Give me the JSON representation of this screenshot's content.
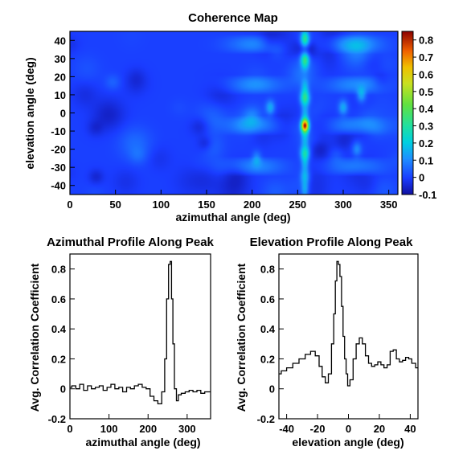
{
  "chart_data": [
    {
      "type": "heatmap",
      "title": "Coherence Map",
      "xlabel": "azimuthal angle (deg)",
      "ylabel": "elevation angle (deg)",
      "xlim": [
        0,
        360
      ],
      "ylim": [
        -45,
        45
      ],
      "xticks": [
        0,
        50,
        100,
        150,
        200,
        250,
        300,
        350
      ],
      "yticks": [
        40,
        30,
        20,
        10,
        0,
        -10,
        -20,
        -30,
        -40
      ],
      "zlim": [
        -0.1,
        0.85
      ],
      "colorbar_ticks": [
        0.8,
        0.7,
        0.6,
        0.5,
        0.4,
        0.3,
        0.2,
        0.1,
        0,
        -0.1
      ],
      "peak": {
        "azimuth": 258,
        "elevation": -7,
        "value": 0.85
      },
      "background_value": 0.0,
      "features": [
        {
          "azimuth": 258,
          "elevation": 8,
          "value": 0.35
        },
        {
          "azimuth": 258,
          "elevation": -22,
          "value": 0.3
        },
        {
          "azimuth": 258,
          "elevation": 30,
          "value": 0.25
        },
        {
          "azimuth": 258,
          "elevation": 40,
          "value": 0.25
        },
        {
          "azimuth": 258,
          "elevation": -35,
          "value": 0.2
        },
        {
          "azimuth": 220,
          "elevation": 3,
          "value": 0.2
        },
        {
          "azimuth": 300,
          "elevation": 3,
          "value": 0.2
        },
        {
          "azimuth": 320,
          "elevation": 10,
          "value": 0.2
        },
        {
          "azimuth": 315,
          "elevation": -20,
          "value": 0.15
        },
        {
          "azimuth": 205,
          "elevation": -25,
          "value": 0.15
        }
      ]
    },
    {
      "type": "line",
      "title": "Azimuthal Profile Along Peak",
      "xlabel": "azimuthal angle (deg)",
      "ylabel": "Avg. Correlation Coefficient",
      "xlim": [
        0,
        360
      ],
      "ylim": [
        -0.2,
        0.9
      ],
      "xticks": [
        0,
        100,
        200,
        300
      ],
      "yticks": [
        0.8,
        0.6,
        0.4,
        0.2,
        0,
        -0.2
      ],
      "x": [
        0,
        10,
        20,
        30,
        40,
        50,
        60,
        70,
        80,
        90,
        100,
        110,
        120,
        130,
        140,
        150,
        160,
        170,
        180,
        190,
        200,
        210,
        220,
        230,
        240,
        245,
        250,
        255,
        258,
        262,
        265,
        270,
        275,
        280,
        290,
        300,
        310,
        320,
        330,
        340,
        350,
        360
      ],
      "y": [
        0.01,
        0.02,
        0.0,
        0.03,
        -0.01,
        0.02,
        0.0,
        0.01,
        0.02,
        -0.01,
        0.01,
        0.03,
        0.0,
        0.01,
        -0.02,
        0.01,
        0.0,
        0.02,
        0.03,
        0.01,
        0.0,
        -0.05,
        -0.08,
        -0.1,
        -0.02,
        0.2,
        0.6,
        0.83,
        0.85,
        0.6,
        0.3,
        0.0,
        -0.08,
        -0.04,
        -0.03,
        -0.02,
        -0.01,
        -0.02,
        -0.01,
        -0.03,
        -0.02,
        -0.02
      ]
    },
    {
      "type": "line",
      "title": "Elevation Profile Along Peak",
      "xlabel": "elevation angle (deg)",
      "ylabel": "Avg. Correlation Coefficient",
      "xlim": [
        -45,
        45
      ],
      "ylim": [
        -0.2,
        0.9
      ],
      "xticks": [
        -40,
        -20,
        0,
        20,
        40
      ],
      "yticks": [
        0.8,
        0.6,
        0.4,
        0.2,
        0,
        -0.2
      ],
      "x": [
        -45,
        -42,
        -38,
        -34,
        -30,
        -26,
        -23,
        -20,
        -18,
        -16,
        -14,
        -12,
        -10,
        -9,
        -8,
        -7,
        -6,
        -5,
        -4,
        -3,
        -2,
        -1,
        0,
        2,
        4,
        6,
        8,
        10,
        12,
        14,
        16,
        18,
        20,
        22,
        24,
        26,
        28,
        30,
        32,
        34,
        36,
        38,
        40,
        42,
        45
      ],
      "y": [
        0.1,
        0.12,
        0.14,
        0.17,
        0.2,
        0.23,
        0.25,
        0.22,
        0.15,
        0.08,
        0.04,
        0.1,
        0.3,
        0.5,
        0.72,
        0.85,
        0.83,
        0.75,
        0.55,
        0.35,
        0.2,
        0.1,
        0.02,
        0.06,
        0.2,
        0.3,
        0.34,
        0.3,
        0.22,
        0.17,
        0.15,
        0.16,
        0.18,
        0.16,
        0.14,
        0.16,
        0.25,
        0.26,
        0.2,
        0.18,
        0.19,
        0.21,
        0.2,
        0.17,
        0.14
      ]
    }
  ]
}
